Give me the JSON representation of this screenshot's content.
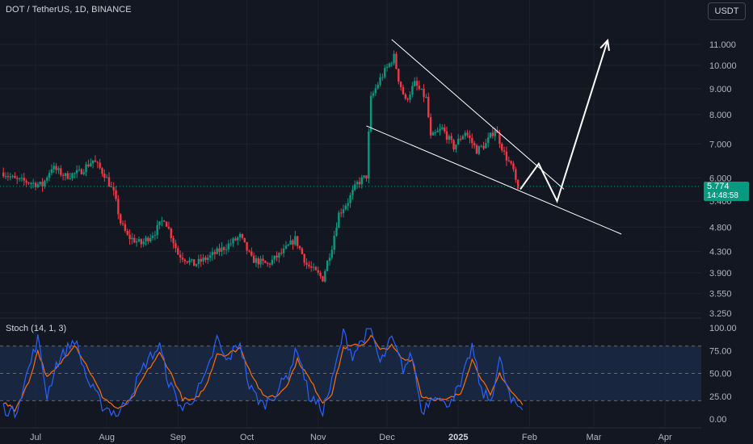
{
  "header": {
    "symbol_title": "DOT / TetherUS, 1D, BINANCE",
    "currency_button": "USDT"
  },
  "price_tag": {
    "price": "5.774",
    "countdown": "14:48:58"
  },
  "indicator": {
    "title": "Stoch (14, 1, 3)"
  },
  "colors": {
    "background": "#131722",
    "up": "#089981",
    "down": "#f23645",
    "grid": "#1e222d",
    "k_line": "#2962ff",
    "d_line": "#ff6d00",
    "band_fill": "#1a2a44"
  },
  "chart_data": [
    {
      "type": "candlestick",
      "title": "DOT / TetherUS, 1D, BINANCE",
      "y_scale": "log",
      "ylim": [
        3.15,
        12.0
      ],
      "y_ticks": [
        "11.000",
        "10.000",
        "9.000",
        "8.000",
        "7.000",
        "6.000",
        "5.400",
        "4.800",
        "4.300",
        "3.900",
        "3.550",
        "3.250"
      ],
      "y_tick_values": [
        11.0,
        10.0,
        9.0,
        8.0,
        7.0,
        6.0,
        5.4,
        4.8,
        4.3,
        3.9,
        3.55,
        3.25
      ],
      "x_ticks": [
        "Jul",
        "Aug",
        "Sep",
        "Oct",
        "Nov",
        "Dec",
        "2025",
        "Feb",
        "Mar",
        "Apr"
      ],
      "x_tick_dates": [
        "2024-07-01",
        "2024-08-01",
        "2024-09-01",
        "2024-10-01",
        "2024-11-01",
        "2024-12-01",
        "2025-01-01",
        "2025-02-01",
        "2025-03-01",
        "2025-04-01"
      ],
      "last_price": 5.774,
      "series_path": [
        [
          "2024-06-17",
          6.15
        ],
        [
          "2024-06-22",
          5.95
        ],
        [
          "2024-06-27",
          5.9
        ],
        [
          "2024-07-04",
          5.8
        ],
        [
          "2024-07-08",
          6.3
        ],
        [
          "2024-07-14",
          6.05
        ],
        [
          "2024-07-20",
          6.15
        ],
        [
          "2024-07-26",
          6.5
        ],
        [
          "2024-07-31",
          6.1
        ],
        [
          "2024-08-04",
          5.6
        ],
        [
          "2024-08-07",
          4.9
        ],
        [
          "2024-08-10",
          4.6
        ],
        [
          "2024-08-16",
          4.45
        ],
        [
          "2024-08-22",
          4.7
        ],
        [
          "2024-08-26",
          5.0
        ],
        [
          "2024-09-01",
          4.25
        ],
        [
          "2024-09-08",
          4.05
        ],
        [
          "2024-09-15",
          4.2
        ],
        [
          "2024-09-22",
          4.4
        ],
        [
          "2024-09-28",
          4.6
        ],
        [
          "2024-10-03",
          4.15
        ],
        [
          "2024-10-10",
          4.05
        ],
        [
          "2024-10-17",
          4.3
        ],
        [
          "2024-10-22",
          4.55
        ],
        [
          "2024-10-27",
          4.05
        ],
        [
          "2024-11-03",
          3.8
        ],
        [
          "2024-11-07",
          4.4
        ],
        [
          "2024-11-10",
          5.1
        ],
        [
          "2024-11-14",
          5.4
        ],
        [
          "2024-11-18",
          5.85
        ],
        [
          "2024-11-22",
          6.05
        ],
        [
          "2024-11-24",
          8.6
        ],
        [
          "2024-11-28",
          9.4
        ],
        [
          "2024-12-04",
          10.4
        ],
        [
          "2024-12-06",
          9.4
        ],
        [
          "2024-12-09",
          8.5
        ],
        [
          "2024-12-13",
          9.2
        ],
        [
          "2024-12-18",
          8.6
        ],
        [
          "2024-12-20",
          7.2
        ],
        [
          "2024-12-25",
          7.5
        ],
        [
          "2024-12-30",
          6.9
        ],
        [
          "2025-01-04",
          7.4
        ],
        [
          "2025-01-09",
          6.8
        ],
        [
          "2025-01-13",
          7.0
        ],
        [
          "2025-01-17",
          7.5
        ],
        [
          "2025-01-21",
          6.7
        ],
        [
          "2025-01-25",
          6.2
        ],
        [
          "2025-01-27",
          5.5
        ]
      ],
      "annotations": {
        "wedge_upper": [
          [
            "2024-12-03",
            11.25
          ],
          [
            "2025-02-16",
            5.7
          ]
        ],
        "wedge_lower": [
          [
            "2024-11-22",
            7.6
          ],
          [
            "2025-03-13",
            4.65
          ]
        ],
        "projected_path": [
          [
            "2025-01-28",
            5.7
          ],
          [
            "2025-02-05",
            6.4
          ],
          [
            "2025-02-13",
            5.4
          ],
          [
            "2025-03-07",
            11.2
          ]
        ]
      }
    },
    {
      "type": "line",
      "title": "Stoch (14, 1, 3)",
      "ylim": [
        0,
        100
      ],
      "y_ticks": [
        "100.00",
        "75.00",
        "50.00",
        "25.00",
        "0.00"
      ],
      "y_tick_values": [
        100,
        75,
        50,
        25,
        0
      ],
      "bands": [
        20,
        50,
        80
      ],
      "k_path": [
        [
          "2024-06-17",
          12
        ],
        [
          "2024-06-22",
          6
        ],
        [
          "2024-06-28",
          55
        ],
        [
          "2024-07-02",
          88
        ],
        [
          "2024-07-06",
          25
        ],
        [
          "2024-07-10",
          60
        ],
        [
          "2024-07-18",
          88
        ],
        [
          "2024-07-24",
          40
        ],
        [
          "2024-07-30",
          15
        ],
        [
          "2024-08-06",
          5
        ],
        [
          "2024-08-12",
          30
        ],
        [
          "2024-08-18",
          62
        ],
        [
          "2024-08-24",
          80
        ],
        [
          "2024-08-28",
          40
        ],
        [
          "2024-09-03",
          10
        ],
        [
          "2024-09-08",
          25
        ],
        [
          "2024-09-13",
          45
        ],
        [
          "2024-09-18",
          88
        ],
        [
          "2024-09-22",
          62
        ],
        [
          "2024-09-28",
          85
        ],
        [
          "2024-10-02",
          35
        ],
        [
          "2024-10-08",
          15
        ],
        [
          "2024-10-14",
          30
        ],
        [
          "2024-10-19",
          50
        ],
        [
          "2024-10-23",
          78
        ],
        [
          "2024-10-28",
          25
        ],
        [
          "2024-11-03",
          10
        ],
        [
          "2024-11-07",
          40
        ],
        [
          "2024-11-12",
          95
        ],
        [
          "2024-11-16",
          70
        ],
        [
          "2024-11-21",
          90
        ],
        [
          "2024-11-24",
          99
        ],
        [
          "2024-11-28",
          60
        ],
        [
          "2024-12-03",
          88
        ],
        [
          "2024-12-08",
          55
        ],
        [
          "2024-12-12",
          70
        ],
        [
          "2024-12-16",
          8
        ],
        [
          "2024-12-22",
          30
        ],
        [
          "2024-12-26",
          14
        ],
        [
          "2025-01-02",
          35
        ],
        [
          "2025-01-07",
          80
        ],
        [
          "2025-01-11",
          30
        ],
        [
          "2025-01-15",
          20
        ],
        [
          "2025-01-19",
          65
        ],
        [
          "2025-01-24",
          18
        ],
        [
          "2025-01-29",
          12
        ]
      ],
      "d_path": [
        [
          "2024-06-17",
          18
        ],
        [
          "2024-06-22",
          10
        ],
        [
          "2024-06-28",
          40
        ],
        [
          "2024-07-02",
          75
        ],
        [
          "2024-07-06",
          45
        ],
        [
          "2024-07-10",
          55
        ],
        [
          "2024-07-18",
          82
        ],
        [
          "2024-07-24",
          55
        ],
        [
          "2024-07-30",
          25
        ],
        [
          "2024-08-06",
          10
        ],
        [
          "2024-08-12",
          22
        ],
        [
          "2024-08-18",
          50
        ],
        [
          "2024-08-24",
          72
        ],
        [
          "2024-08-28",
          55
        ],
        [
          "2024-09-03",
          22
        ],
        [
          "2024-09-08",
          20
        ],
        [
          "2024-09-13",
          35
        ],
        [
          "2024-09-18",
          72
        ],
        [
          "2024-09-22",
          70
        ],
        [
          "2024-09-28",
          78
        ],
        [
          "2024-10-02",
          55
        ],
        [
          "2024-10-08",
          25
        ],
        [
          "2024-10-14",
          25
        ],
        [
          "2024-10-19",
          40
        ],
        [
          "2024-10-23",
          65
        ],
        [
          "2024-10-28",
          45
        ],
        [
          "2024-11-03",
          18
        ],
        [
          "2024-11-07",
          28
        ],
        [
          "2024-11-12",
          78
        ],
        [
          "2024-11-16",
          80
        ],
        [
          "2024-11-21",
          82
        ],
        [
          "2024-11-24",
          92
        ],
        [
          "2024-11-28",
          75
        ],
        [
          "2024-12-03",
          80
        ],
        [
          "2024-12-08",
          65
        ],
        [
          "2024-12-12",
          65
        ],
        [
          "2024-12-16",
          25
        ],
        [
          "2024-12-22",
          22
        ],
        [
          "2024-12-26",
          20
        ],
        [
          "2025-01-02",
          28
        ],
        [
          "2025-01-07",
          65
        ],
        [
          "2025-01-11",
          45
        ],
        [
          "2025-01-15",
          25
        ],
        [
          "2025-01-19",
          50
        ],
        [
          "2025-01-24",
          30
        ],
        [
          "2025-01-29",
          16
        ]
      ]
    }
  ]
}
